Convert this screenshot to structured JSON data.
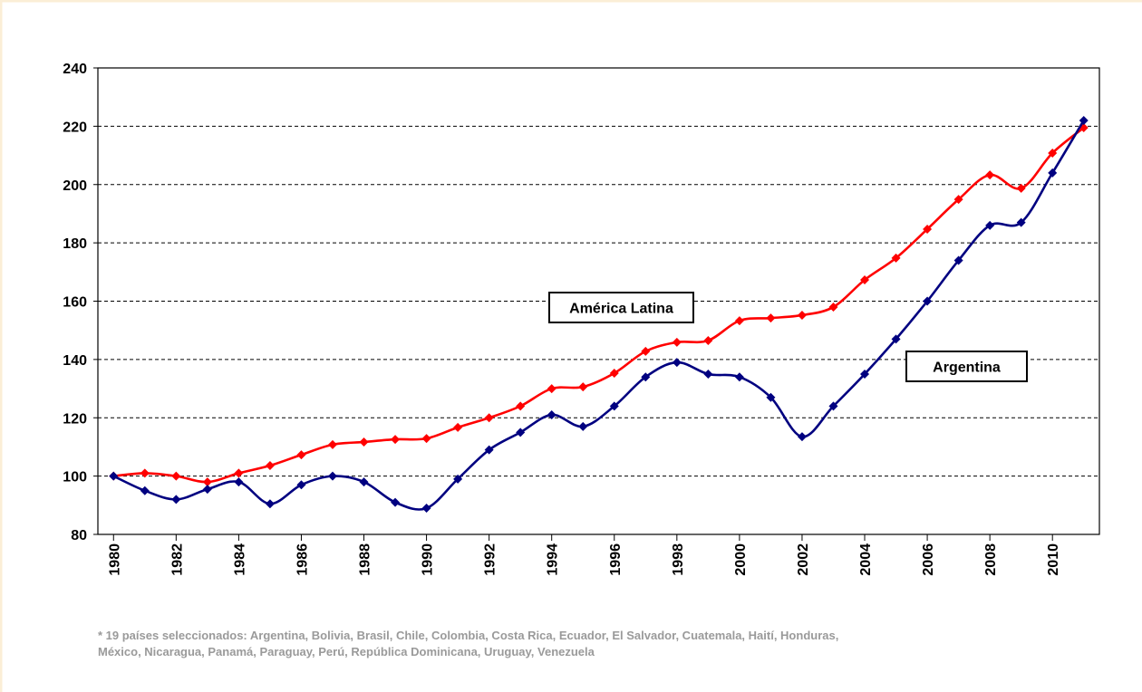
{
  "chart_data": {
    "type": "line",
    "x": [
      1980,
      1981,
      1982,
      1983,
      1984,
      1985,
      1986,
      1987,
      1988,
      1989,
      1990,
      1991,
      1992,
      1993,
      1994,
      1995,
      1996,
      1997,
      1998,
      1999,
      2000,
      2001,
      2002,
      2003,
      2004,
      2005,
      2006,
      2007,
      2008,
      2009,
      2010,
      2011
    ],
    "series": [
      {
        "name": "América Latina",
        "color": "#ff0000",
        "values": [
          100,
          101,
          100,
          98,
          101,
          103.6,
          107.3,
          110.8,
          111.7,
          112.6,
          112.9,
          116.7,
          120,
          124,
          130,
          130.6,
          135.3,
          142.8,
          145.9,
          146.5,
          153.3,
          154.2,
          155.2,
          158,
          167.3,
          174.8,
          184.7,
          194.9,
          203.3,
          198.7,
          210.8,
          219.5
        ]
      },
      {
        "name": "Argentina",
        "color": "#000080",
        "values": [
          100,
          95,
          92,
          95.5,
          98,
          90.5,
          97,
          100,
          98,
          91,
          89,
          99,
          109,
          115,
          121,
          117,
          124,
          134,
          139,
          135,
          134,
          127,
          113.5,
          124,
          135,
          147,
          160,
          174,
          186,
          187,
          204,
          222
        ]
      }
    ],
    "xlim": [
      1979.5,
      2011.5
    ],
    "xticks": [
      1980,
      1982,
      1984,
      1986,
      1988,
      1990,
      1992,
      1994,
      1996,
      1998,
      2000,
      2002,
      2004,
      2006,
      2008,
      2010
    ],
    "ylim": [
      80,
      240
    ],
    "yticks": [
      80,
      100,
      120,
      140,
      160,
      180,
      200,
      220,
      240
    ],
    "grid": true,
    "footnote": [
      "* 19 países seleccionados: Argentina, Bolivia, Brasil, Chile, Colombia, Costa Rica, Ecuador, El Salvador, Cuatemala, Haití, Honduras,",
      "México, Nicaragua, Panamá, Paraguay, Perú, República Dominicana, Uruguay, Venezuela"
    ]
  }
}
